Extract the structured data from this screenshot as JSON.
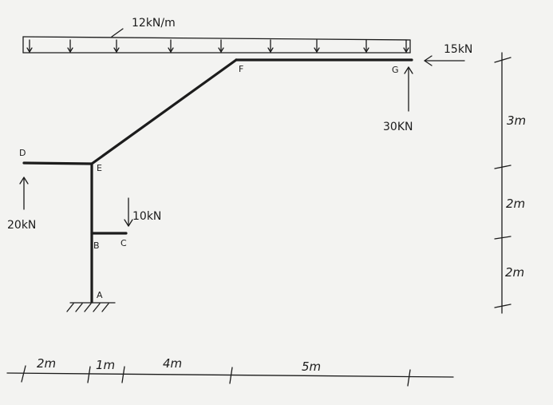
{
  "points": {
    "A": "A",
    "B": "B",
    "C": "C",
    "D": "D",
    "E": "E",
    "F": "F",
    "G": "G"
  },
  "loads": {
    "udl": "12kN/m",
    "horizontal_G": "15kN",
    "vertical_G": "30KN",
    "vertical_C": "10kN",
    "vertical_D": "20kN"
  },
  "dimensions": {
    "horizontal": [
      "2m",
      "1m",
      "4m",
      "5m"
    ],
    "vertical": [
      "3m",
      "2m",
      "2m"
    ]
  }
}
